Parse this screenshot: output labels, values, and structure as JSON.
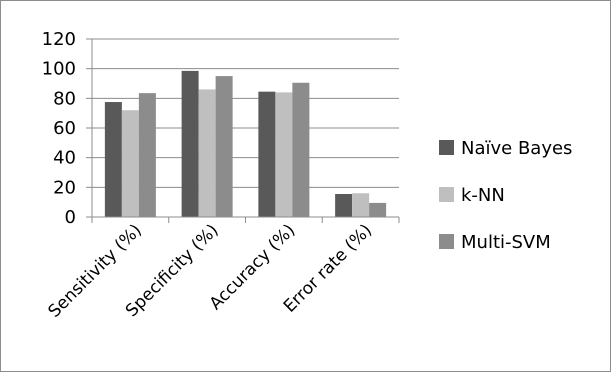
{
  "chart_data": {
    "type": "bar",
    "categories": [
      "Sensitivity (%)",
      "Specificity (%)",
      "Accuracy (%)",
      "Error rate (%)"
    ],
    "series": [
      {
        "name": "Naïve Bayes",
        "values": [
          77.5,
          98.5,
          84.5,
          15.5
        ],
        "color": "#595959"
      },
      {
        "name": "k-NN",
        "values": [
          72,
          86,
          84,
          16
        ],
        "color": "#bfbfbf"
      },
      {
        "name": "Multi-SVM",
        "values": [
          83.5,
          95,
          90.5,
          9.5
        ],
        "color": "#8c8c8c"
      }
    ],
    "yticks": [
      0,
      20,
      40,
      60,
      80,
      100,
      120
    ],
    "ylim": [
      0,
      120
    ],
    "grid": true,
    "legend_position": "right"
  }
}
